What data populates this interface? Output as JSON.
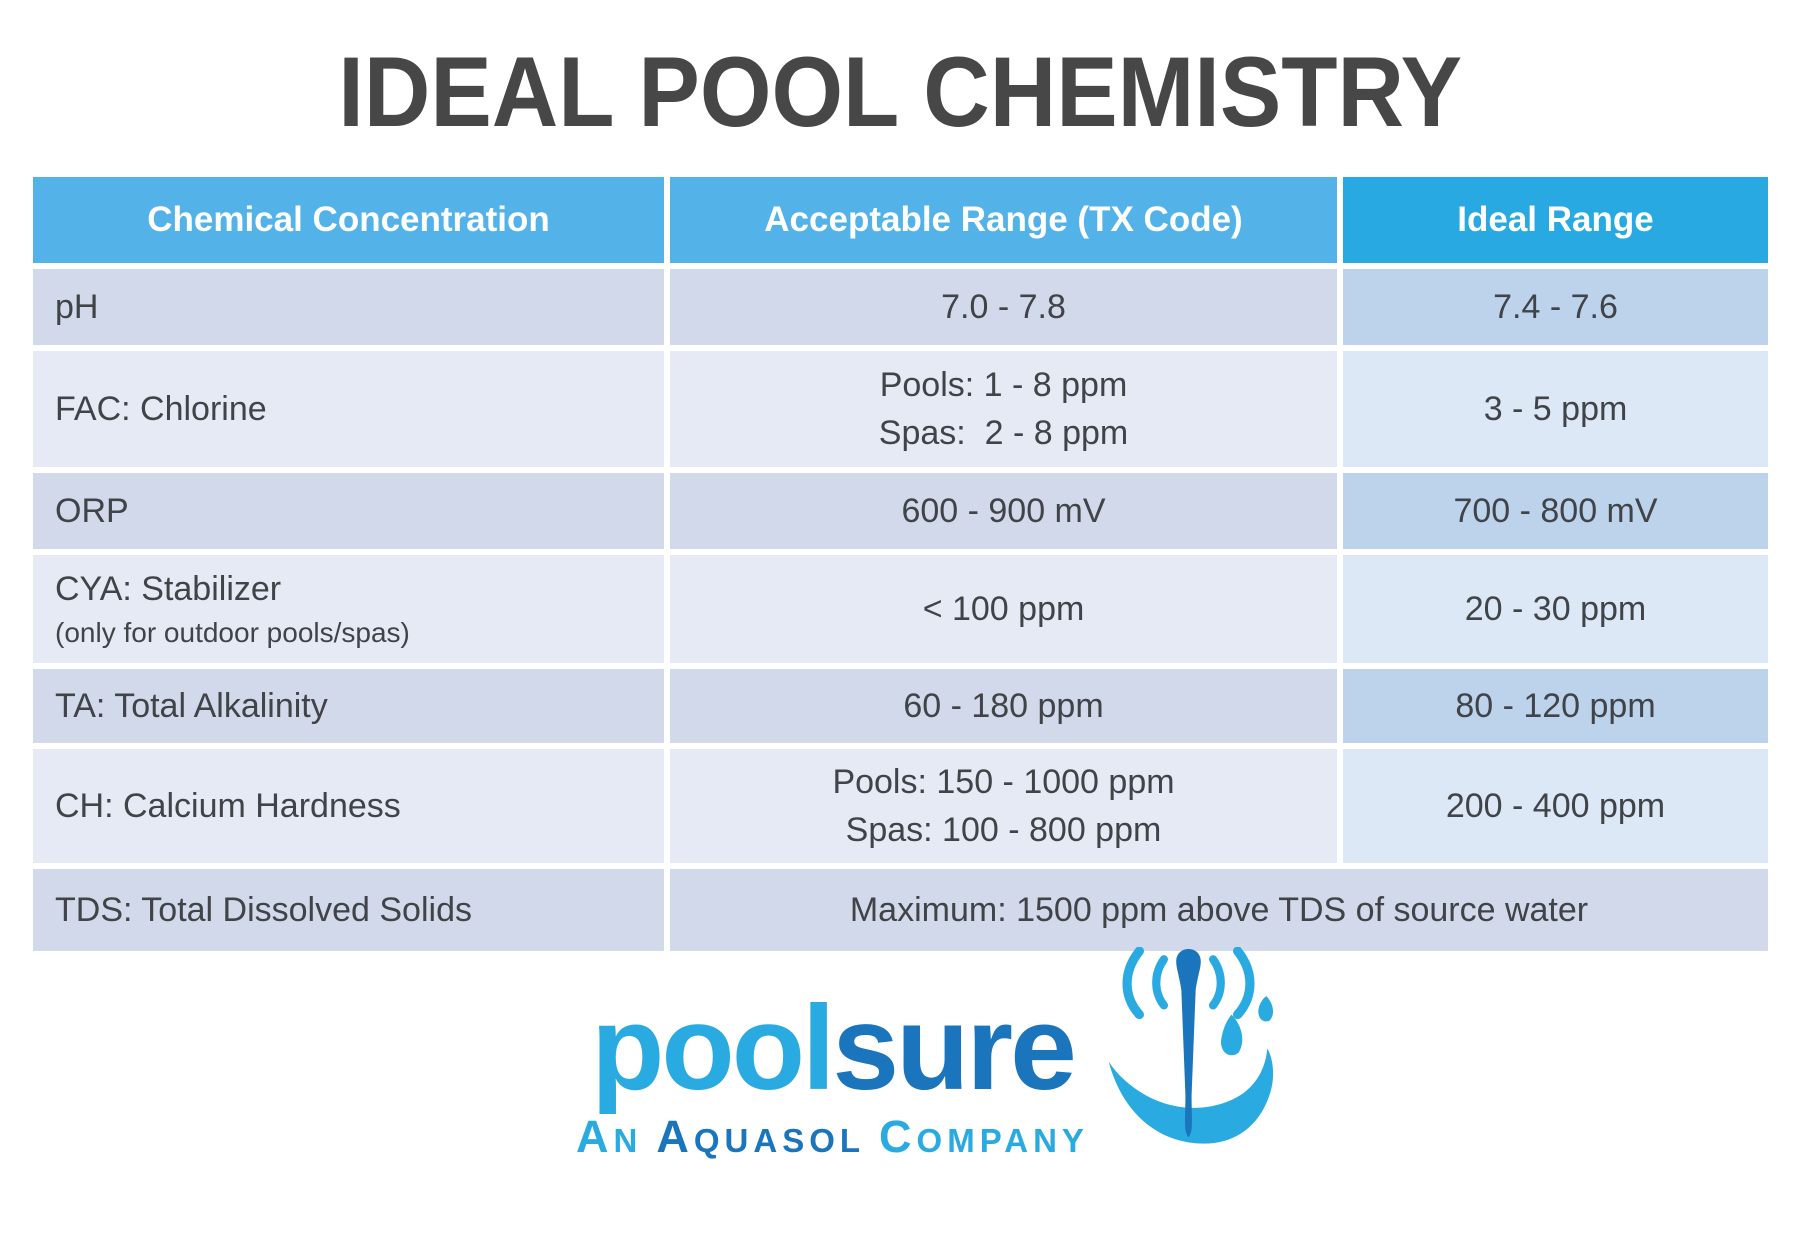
{
  "title": "IDEAL POOL CHEMISTRY",
  "table": {
    "columns": [
      "Chemical Concentration",
      "Acceptable Range (TX Code)",
      "Ideal Range"
    ],
    "rows": [
      {
        "chemical": "pH",
        "acceptable": [
          "7.0 - 7.8"
        ],
        "ideal": "7.4 - 7.6"
      },
      {
        "chemical": "FAC: Chlorine",
        "acceptable": [
          "Pools: 1 - 8 ppm",
          "Spas:  2 - 8 ppm"
        ],
        "ideal": "3 - 5 ppm"
      },
      {
        "chemical": "ORP",
        "acceptable": [
          "600 - 900 mV"
        ],
        "ideal": "700 - 800 mV"
      },
      {
        "chemical": "CYA: Stabilizer",
        "chemical_note": "(only for outdoor pools/spas)",
        "acceptable": [
          "< 100 ppm"
        ],
        "ideal": "20 - 30 ppm"
      },
      {
        "chemical": "TA: Total Alkalinity",
        "acceptable": [
          "60 - 180 ppm"
        ],
        "ideal": "80 - 120 ppm"
      },
      {
        "chemical": "CH: Calcium Hardness",
        "acceptable": [
          "Pools: 150 - 1000 ppm",
          "Spas: 100 - 800 ppm"
        ],
        "ideal": "200 - 400 ppm"
      },
      {
        "chemical": "TDS: Total Dissolved Solids",
        "acceptable_span": "Maximum: 1500 ppm above TDS of source water"
      }
    ]
  },
  "logo": {
    "wordmark_light": "pool",
    "wordmark_dark": "sure",
    "tagline": [
      {
        "lead": "A",
        "rest": "N",
        "tone": "light"
      },
      {
        "lead": "A",
        "rest": "QUASOL",
        "tone": "dark"
      },
      {
        "lead": "C",
        "rest": "OMPANY",
        "tone": "light"
      }
    ],
    "icon": "water-test-strip-splash-icon"
  },
  "colors": {
    "header_primary": "#53B3E8",
    "header_ideal": "#29A9E1",
    "row_odd": "#D2D9EA",
    "row_odd_ideal": "#BDD2EB",
    "row_even": "#E6EAF5",
    "row_even_ideal": "#DCE8F6",
    "cell_text": "#404448",
    "title_text": "#474747",
    "logo_light": "#29ABE2",
    "logo_dark": "#1B75BC"
  }
}
